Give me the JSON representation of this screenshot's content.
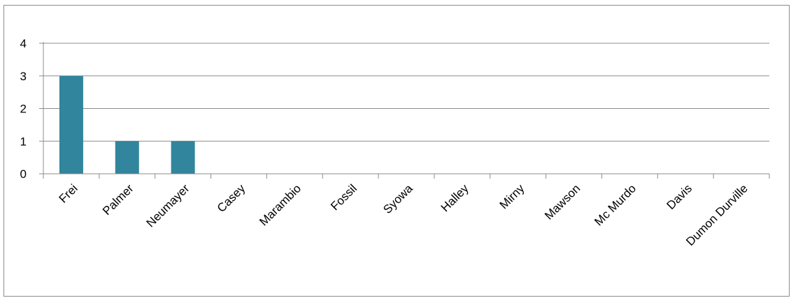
{
  "chart_data": {
    "type": "bar",
    "title": "",
    "xlabel": "",
    "ylabel": "",
    "categories": [
      "Frei",
      "Palmer",
      "Neumayer",
      "Casey",
      "Marambio",
      "Fossil",
      "Syowa",
      "Halley",
      "Mirny",
      "Mawson",
      "Mc Murdo",
      "Davis",
      "Dumon Durville"
    ],
    "values": [
      3,
      1,
      1,
      0,
      0,
      0,
      0,
      0,
      0,
      0,
      0,
      0,
      0
    ],
    "ylim": [
      0,
      4
    ],
    "yticks": [
      0,
      1,
      2,
      3,
      4
    ],
    "grid": true,
    "legend": "none",
    "colors": {
      "bar": "#31859c",
      "grid": "#8c8c8c",
      "axis": "#8c8c8c"
    }
  }
}
